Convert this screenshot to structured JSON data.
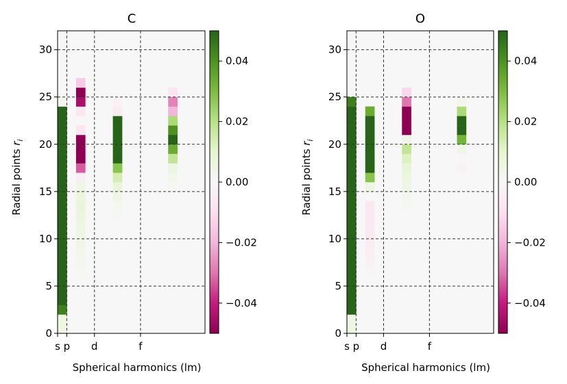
{
  "chart_data": [
    {
      "type": "heatmap",
      "title": "C",
      "xlabel": "Spherical harmonics (lm)",
      "ylabel": "Radial points r_i",
      "xlim": [
        0,
        16
      ],
      "ylim": [
        0,
        32
      ],
      "x_ticks": [
        {
          "label": "s",
          "value": 0
        },
        {
          "label": "p",
          "value": 1
        },
        {
          "label": "d",
          "value": 4
        },
        {
          "label": "f",
          "value": 9
        }
      ],
      "y_ticks": [
        0,
        5,
        10,
        15,
        20,
        25,
        30
      ],
      "grid_x": [
        1,
        4,
        9
      ],
      "grid_y": [
        5,
        10,
        15,
        20,
        25,
        30
      ],
      "grid": true,
      "colorbar": {
        "min": -0.05,
        "max": 0.05,
        "ticks": [
          "0.04",
          "0.02",
          "0.00",
          "−0.02",
          "−0.04"
        ],
        "tick_values": [
          0.04,
          0.02,
          0.0,
          -0.02,
          -0.04
        ],
        "colormap": "PiYG"
      },
      "background_value": 0.0,
      "columns": [
        {
          "col": 0,
          "values": [
            0.006,
            0.006,
            0.044,
            0.05,
            0.05,
            0.05,
            0.05,
            0.05,
            0.05,
            0.05,
            0.05,
            0.05,
            0.05,
            0.05,
            0.05,
            0.05,
            0.05,
            0.05,
            0.05,
            0.05,
            0.05,
            0.05,
            0.05,
            0.05,
            0.003
          ]
        },
        {
          "col": 2,
          "values": [
            0,
            0,
            0,
            0,
            0,
            0,
            0.001,
            0.002,
            0.003,
            0.004,
            0.005,
            0.006,
            0.007,
            0.008,
            0.007,
            0.004,
            -0.004,
            -0.033,
            -0.05,
            -0.05,
            -0.05,
            -0.008,
            0.0,
            -0.007,
            -0.045,
            -0.05,
            -0.015,
            0.0
          ]
        },
        {
          "col": 6,
          "values": [
            0,
            0,
            0,
            0,
            0,
            0,
            0,
            0,
            0,
            0,
            0,
            0,
            0.001,
            0.002,
            0.004,
            0.008,
            0.014,
            0.028,
            0.05,
            0.05,
            0.05,
            0.05,
            0.05,
            -0.005,
            -0.002
          ]
        },
        {
          "col": 12,
          "values": [
            0,
            0,
            0,
            0,
            0,
            0,
            0,
            0,
            0,
            0,
            0,
            0,
            0,
            0,
            0,
            0.001,
            0.003,
            0.006,
            0.018,
            0.034,
            0.05,
            0.04,
            0.022,
            -0.02,
            -0.028,
            -0.008
          ]
        }
      ]
    },
    {
      "type": "heatmap",
      "title": "O",
      "xlabel": "Spherical harmonics (lm)",
      "ylabel": "Radial points r_i",
      "xlim": [
        0,
        16
      ],
      "ylim": [
        0,
        32
      ],
      "x_ticks": [
        {
          "label": "s",
          "value": 0
        },
        {
          "label": "p",
          "value": 1
        },
        {
          "label": "d",
          "value": 4
        },
        {
          "label": "f",
          "value": 9
        }
      ],
      "y_ticks": [
        0,
        5,
        10,
        15,
        20,
        25,
        30
      ],
      "grid_x": [
        1,
        4,
        9
      ],
      "grid_y": [
        5,
        10,
        15,
        20,
        25,
        30
      ],
      "grid": true,
      "colorbar": {
        "min": -0.05,
        "max": 0.05,
        "ticks": [
          "0.04",
          "0.02",
          "0.00",
          "−0.02",
          "−0.04"
        ],
        "tick_values": [
          0.04,
          0.02,
          0.0,
          -0.02,
          -0.04
        ],
        "colormap": "PiYG"
      },
      "background_value": 0.0,
      "columns": [
        {
          "col": 0,
          "values": [
            0.006,
            0.006,
            0.05,
            0.05,
            0.05,
            0.05,
            0.05,
            0.05,
            0.05,
            0.05,
            0.05,
            0.05,
            0.05,
            0.05,
            0.05,
            0.05,
            0.05,
            0.05,
            0.05,
            0.05,
            0.05,
            0.05,
            0.05,
            0.05,
            0.044
          ]
        },
        {
          "col": 2,
          "values": [
            0,
            0,
            0,
            0,
            0,
            0,
            -0.001,
            -0.002,
            -0.004,
            -0.005,
            -0.006,
            -0.006,
            -0.007,
            -0.006,
            0.0,
            0.006,
            0.028,
            0.05,
            0.05,
            0.05,
            0.05,
            0.05,
            0.05,
            0.034
          ]
        },
        {
          "col": 6,
          "values": [
            0,
            0,
            0,
            0,
            0,
            0,
            0,
            0,
            0,
            0,
            0,
            0,
            0,
            0.001,
            0.002,
            0.004,
            0.006,
            0.008,
            0.012,
            0.018,
            0.004,
            -0.05,
            -0.05,
            -0.05,
            -0.03,
            -0.012
          ]
        },
        {
          "col": 12,
          "values": [
            0,
            0,
            0,
            0,
            0,
            0,
            0,
            0,
            0,
            0,
            0,
            0,
            0,
            0,
            0,
            0,
            0,
            -0.002,
            -0.001,
            0.004,
            0.032,
            0.05,
            0.05,
            0.022,
            0.003
          ]
        }
      ]
    }
  ]
}
